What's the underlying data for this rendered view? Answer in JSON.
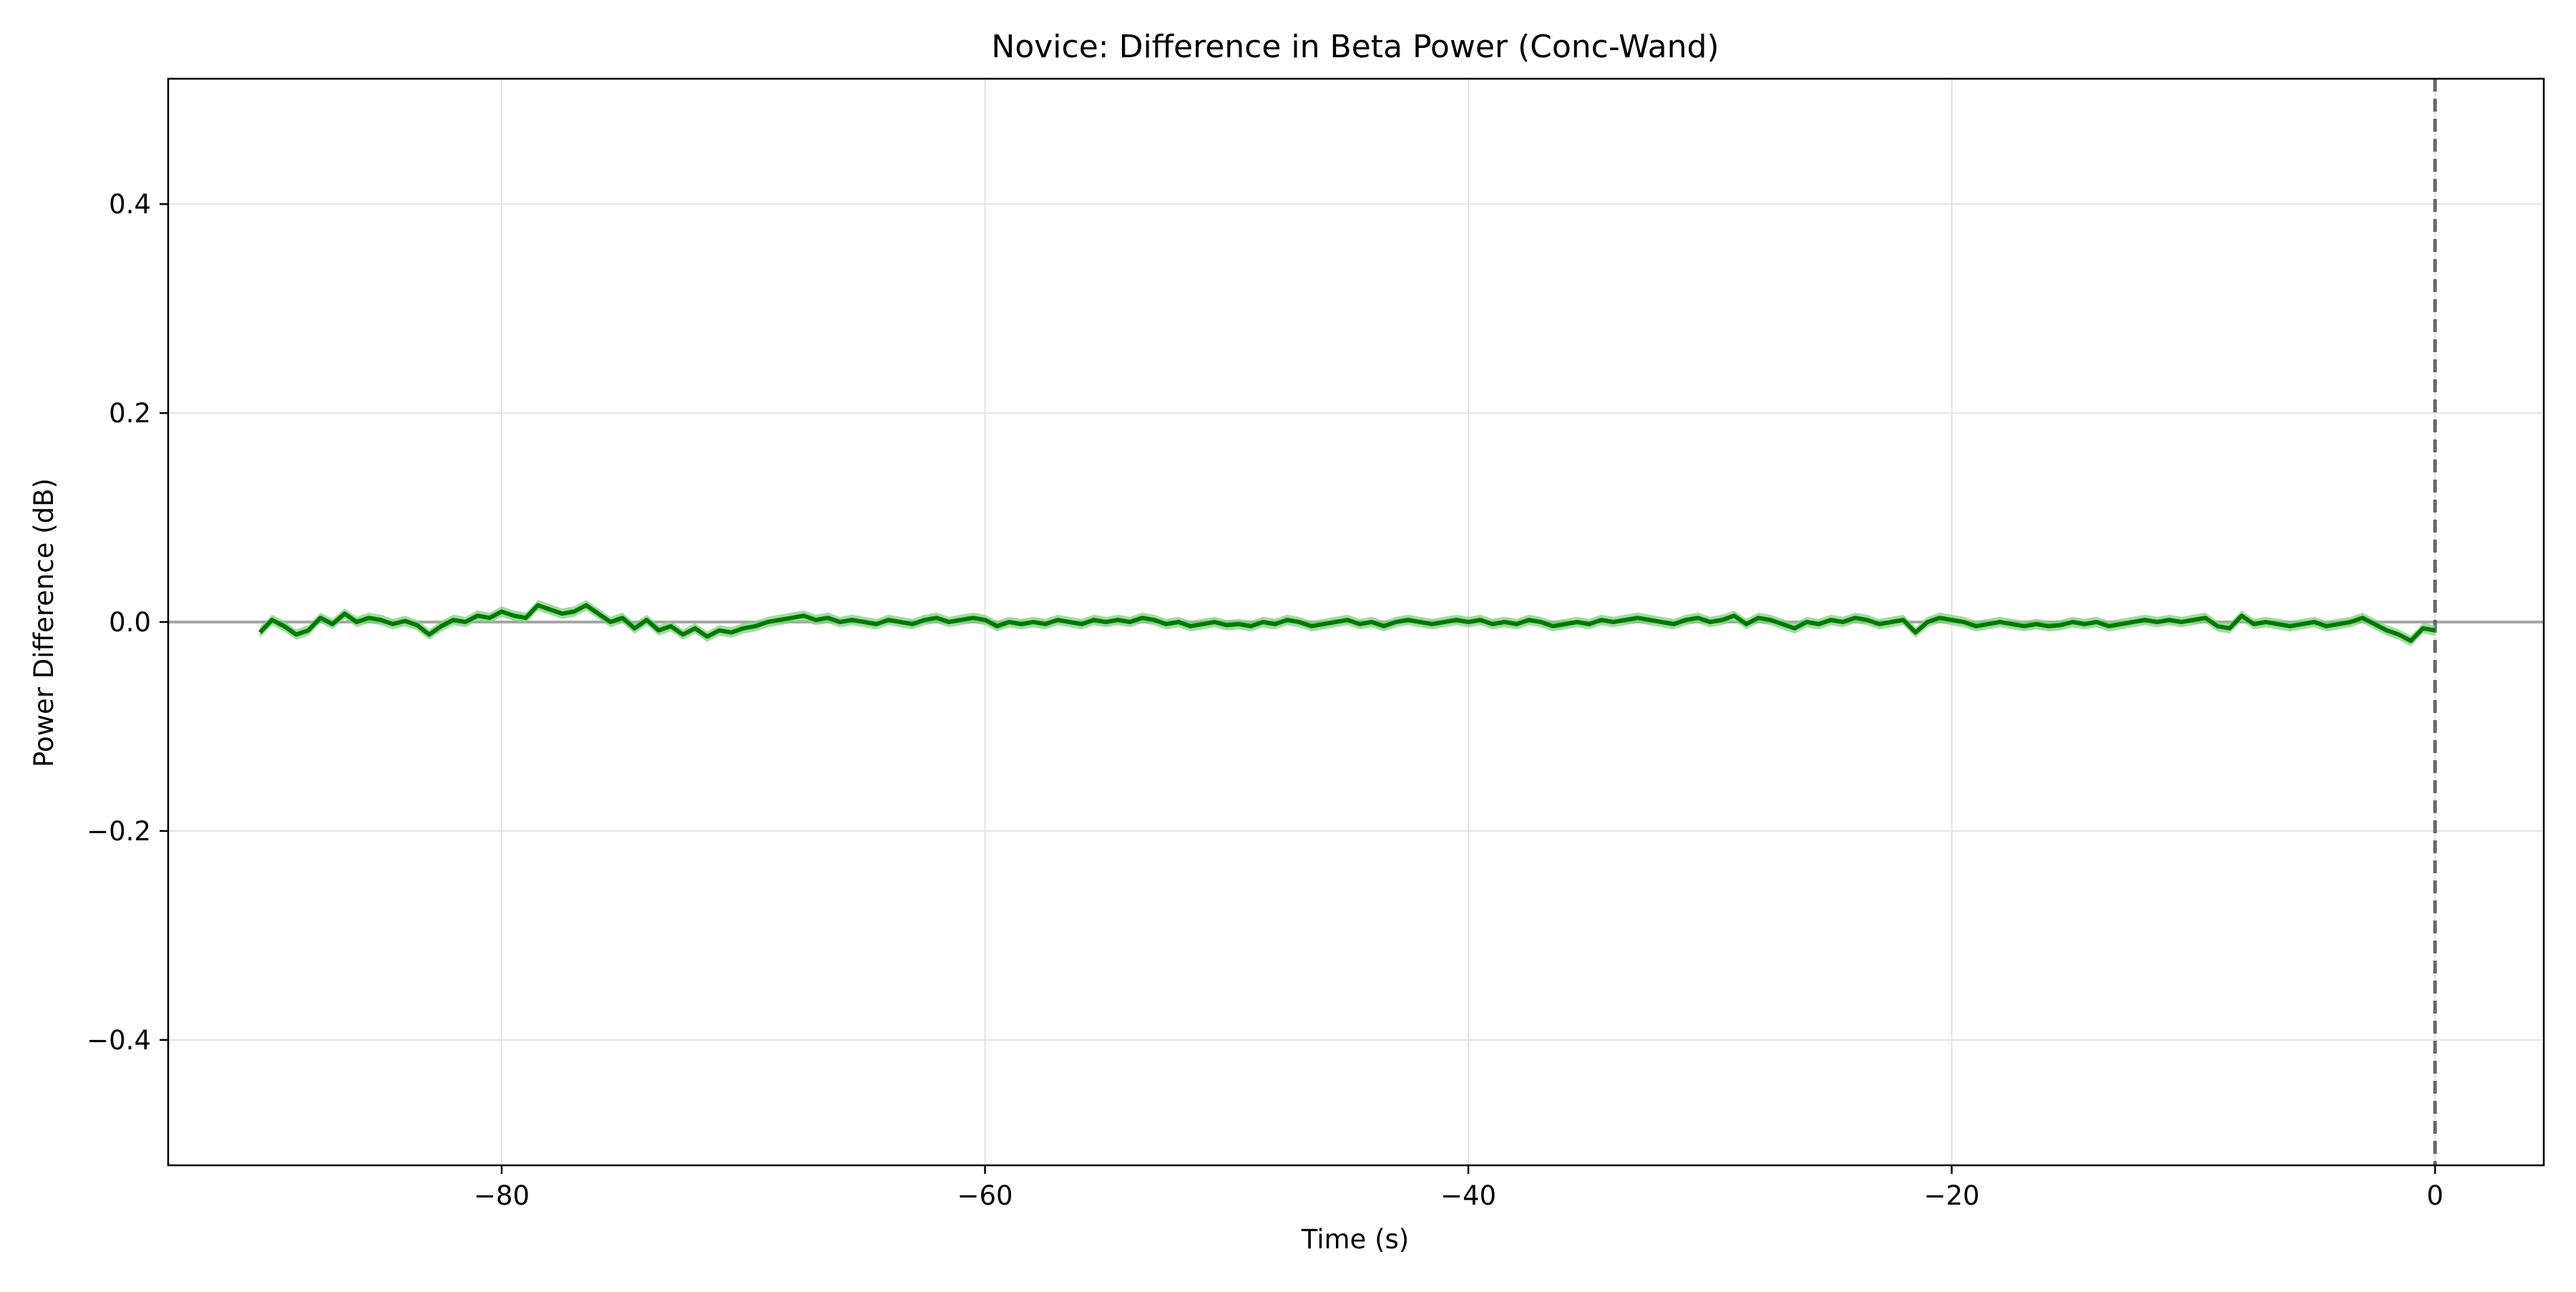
{
  "chart_data": {
    "type": "line",
    "title": "Novice: Difference in Beta Power (Conc-Wand)",
    "xlabel": "Time (s)",
    "ylabel": "Power Difference (dB)",
    "xlim": [
      -93.8,
      4.5
    ],
    "ylim": [
      -0.52,
      0.52
    ],
    "x_ticks": [
      -80,
      -60,
      -40,
      -20,
      0
    ],
    "x_tick_labels": [
      "−80",
      "−60",
      "−40",
      "−20",
      "0"
    ],
    "y_ticks": [
      -0.4,
      -0.2,
      0.0,
      0.2,
      0.4
    ],
    "y_tick_labels": [
      "−0.4",
      "−0.2",
      "0.0",
      "0.2",
      "0.4"
    ],
    "grid": true,
    "legend": "none",
    "reference_lines": {
      "horizontal_y": 0.0,
      "vertical_x": 0,
      "vertical_style": "dashed"
    },
    "colors": {
      "line": "#007a00",
      "band": "#7fd07f",
      "grid": "#e3e3e3",
      "zero_line": "#a6a6a6",
      "event_line": "#666666",
      "frame": "#000000"
    },
    "series": [
      {
        "x": [
          -90,
          -89.5,
          -89,
          -88.5,
          -88,
          -87.5,
          -87,
          -86.5,
          -86,
          -85.5,
          -85,
          -84.5,
          -84,
          -83.5,
          -83,
          -82.5,
          -82,
          -81.5,
          -81,
          -80.5,
          -80,
          -79.5,
          -79,
          -78.5,
          -78,
          -77.5,
          -77,
          -76.5,
          -76,
          -75.5,
          -75,
          -74.5,
          -74,
          -73.5,
          -73,
          -72.5,
          -72,
          -71.5,
          -71,
          -70.5,
          -70,
          -69.5,
          -69,
          -68.5,
          -68,
          -67.5,
          -67,
          -66.5,
          -66,
          -65.5,
          -65,
          -64.5,
          -64,
          -63.5,
          -63,
          -62.5,
          -62,
          -61.5,
          -61,
          -60.5,
          -60,
          -59.5,
          -59,
          -58.5,
          -58,
          -57.5,
          -57,
          -56.5,
          -56,
          -55.5,
          -55,
          -54.5,
          -54,
          -53.5,
          -53,
          -52.5,
          -52,
          -51.5,
          -51,
          -50.5,
          -50,
          -49.5,
          -49,
          -48.5,
          -48,
          -47.5,
          -47,
          -46.5,
          -46,
          -45.5,
          -45,
          -44.5,
          -44,
          -43.5,
          -43,
          -42.5,
          -42,
          -41.5,
          -41,
          -40.5,
          -40,
          -39.5,
          -39,
          -38.5,
          -38,
          -37.5,
          -37,
          -36.5,
          -36,
          -35.5,
          -35,
          -34.5,
          -34,
          -33.5,
          -33,
          -32.5,
          -32,
          -31.5,
          -31,
          -30.5,
          -30,
          -29.5,
          -29,
          -28.5,
          -28,
          -27.5,
          -27,
          -26.5,
          -26,
          -25.5,
          -25,
          -24.5,
          -24,
          -23.5,
          -23,
          -22.5,
          -22,
          -21.5,
          -21,
          -20.5,
          -20,
          -19.5,
          -19,
          -18.5,
          -18,
          -17.5,
          -17,
          -16.5,
          -16,
          -15.5,
          -15,
          -14.5,
          -14,
          -13.5,
          -13,
          -12.5,
          -12,
          -11.5,
          -11,
          -10.5,
          -10,
          -9.5,
          -9,
          -8.5,
          -8,
          -7.5,
          -7,
          -6.5,
          -6,
          -5.5,
          -5,
          -4.5,
          -4,
          -3.5,
          -3,
          -2.5,
          -2,
          -1.5,
          -1,
          -0.5,
          0
        ],
        "y": [
          -0.01,
          0.002,
          -0.004,
          -0.012,
          -0.008,
          0.004,
          -0.002,
          0.008,
          0.0,
          0.004,
          0.002,
          -0.002,
          0.001,
          -0.003,
          -0.012,
          -0.004,
          0.002,
          0.0,
          0.006,
          0.004,
          0.01,
          0.006,
          0.004,
          0.016,
          0.012,
          0.008,
          0.01,
          0.016,
          0.008,
          0.0,
          0.004,
          -0.006,
          0.002,
          -0.008,
          -0.004,
          -0.012,
          -0.006,
          -0.014,
          -0.008,
          -0.01,
          -0.006,
          -0.004,
          0.0,
          0.002,
          0.004,
          0.006,
          0.002,
          0.004,
          0.0,
          0.002,
          0.0,
          -0.002,
          0.002,
          0.0,
          -0.002,
          0.002,
          0.004,
          0.0,
          0.002,
          0.004,
          0.002,
          -0.004,
          0.0,
          -0.002,
          0.0,
          -0.002,
          0.002,
          0.0,
          -0.002,
          0.002,
          0.0,
          0.002,
          0.0,
          0.004,
          0.002,
          -0.002,
          0.0,
          -0.004,
          -0.002,
          0.0,
          -0.003,
          -0.002,
          -0.004,
          0.0,
          -0.002,
          0.002,
          0.0,
          -0.004,
          -0.002,
          0.0,
          0.002,
          -0.002,
          0.0,
          -0.004,
          0.0,
          0.002,
          0.0,
          -0.002,
          0.0,
          0.002,
          0.0,
          0.002,
          -0.002,
          0.0,
          -0.002,
          0.002,
          0.0,
          -0.004,
          -0.002,
          0.0,
          -0.002,
          0.002,
          0.0,
          0.002,
          0.004,
          0.002,
          0.0,
          -0.002,
          0.002,
          0.004,
          0.0,
          0.002,
          0.006,
          -0.002,
          0.004,
          0.002,
          -0.002,
          -0.006,
          0.0,
          -0.002,
          0.002,
          0.0,
          0.004,
          0.002,
          -0.002,
          0.0,
          0.002,
          -0.01,
          0.0,
          0.004,
          0.002,
          0.0,
          -0.004,
          -0.002,
          0.0,
          -0.002,
          -0.004,
          -0.002,
          -0.004,
          -0.003,
          0.0,
          -0.002,
          0.0,
          -0.004,
          -0.002,
          0.0,
          0.002,
          0.0,
          0.002,
          0.0,
          0.002,
          0.004,
          -0.004,
          -0.006,
          0.006,
          -0.002,
          0.0,
          -0.002,
          -0.004,
          -0.002,
          0.0,
          -0.004,
          -0.002,
          0.0,
          0.004,
          -0.002,
          -0.008,
          -0.012,
          -0.018,
          -0.006,
          -0.008
        ]
      }
    ]
  }
}
